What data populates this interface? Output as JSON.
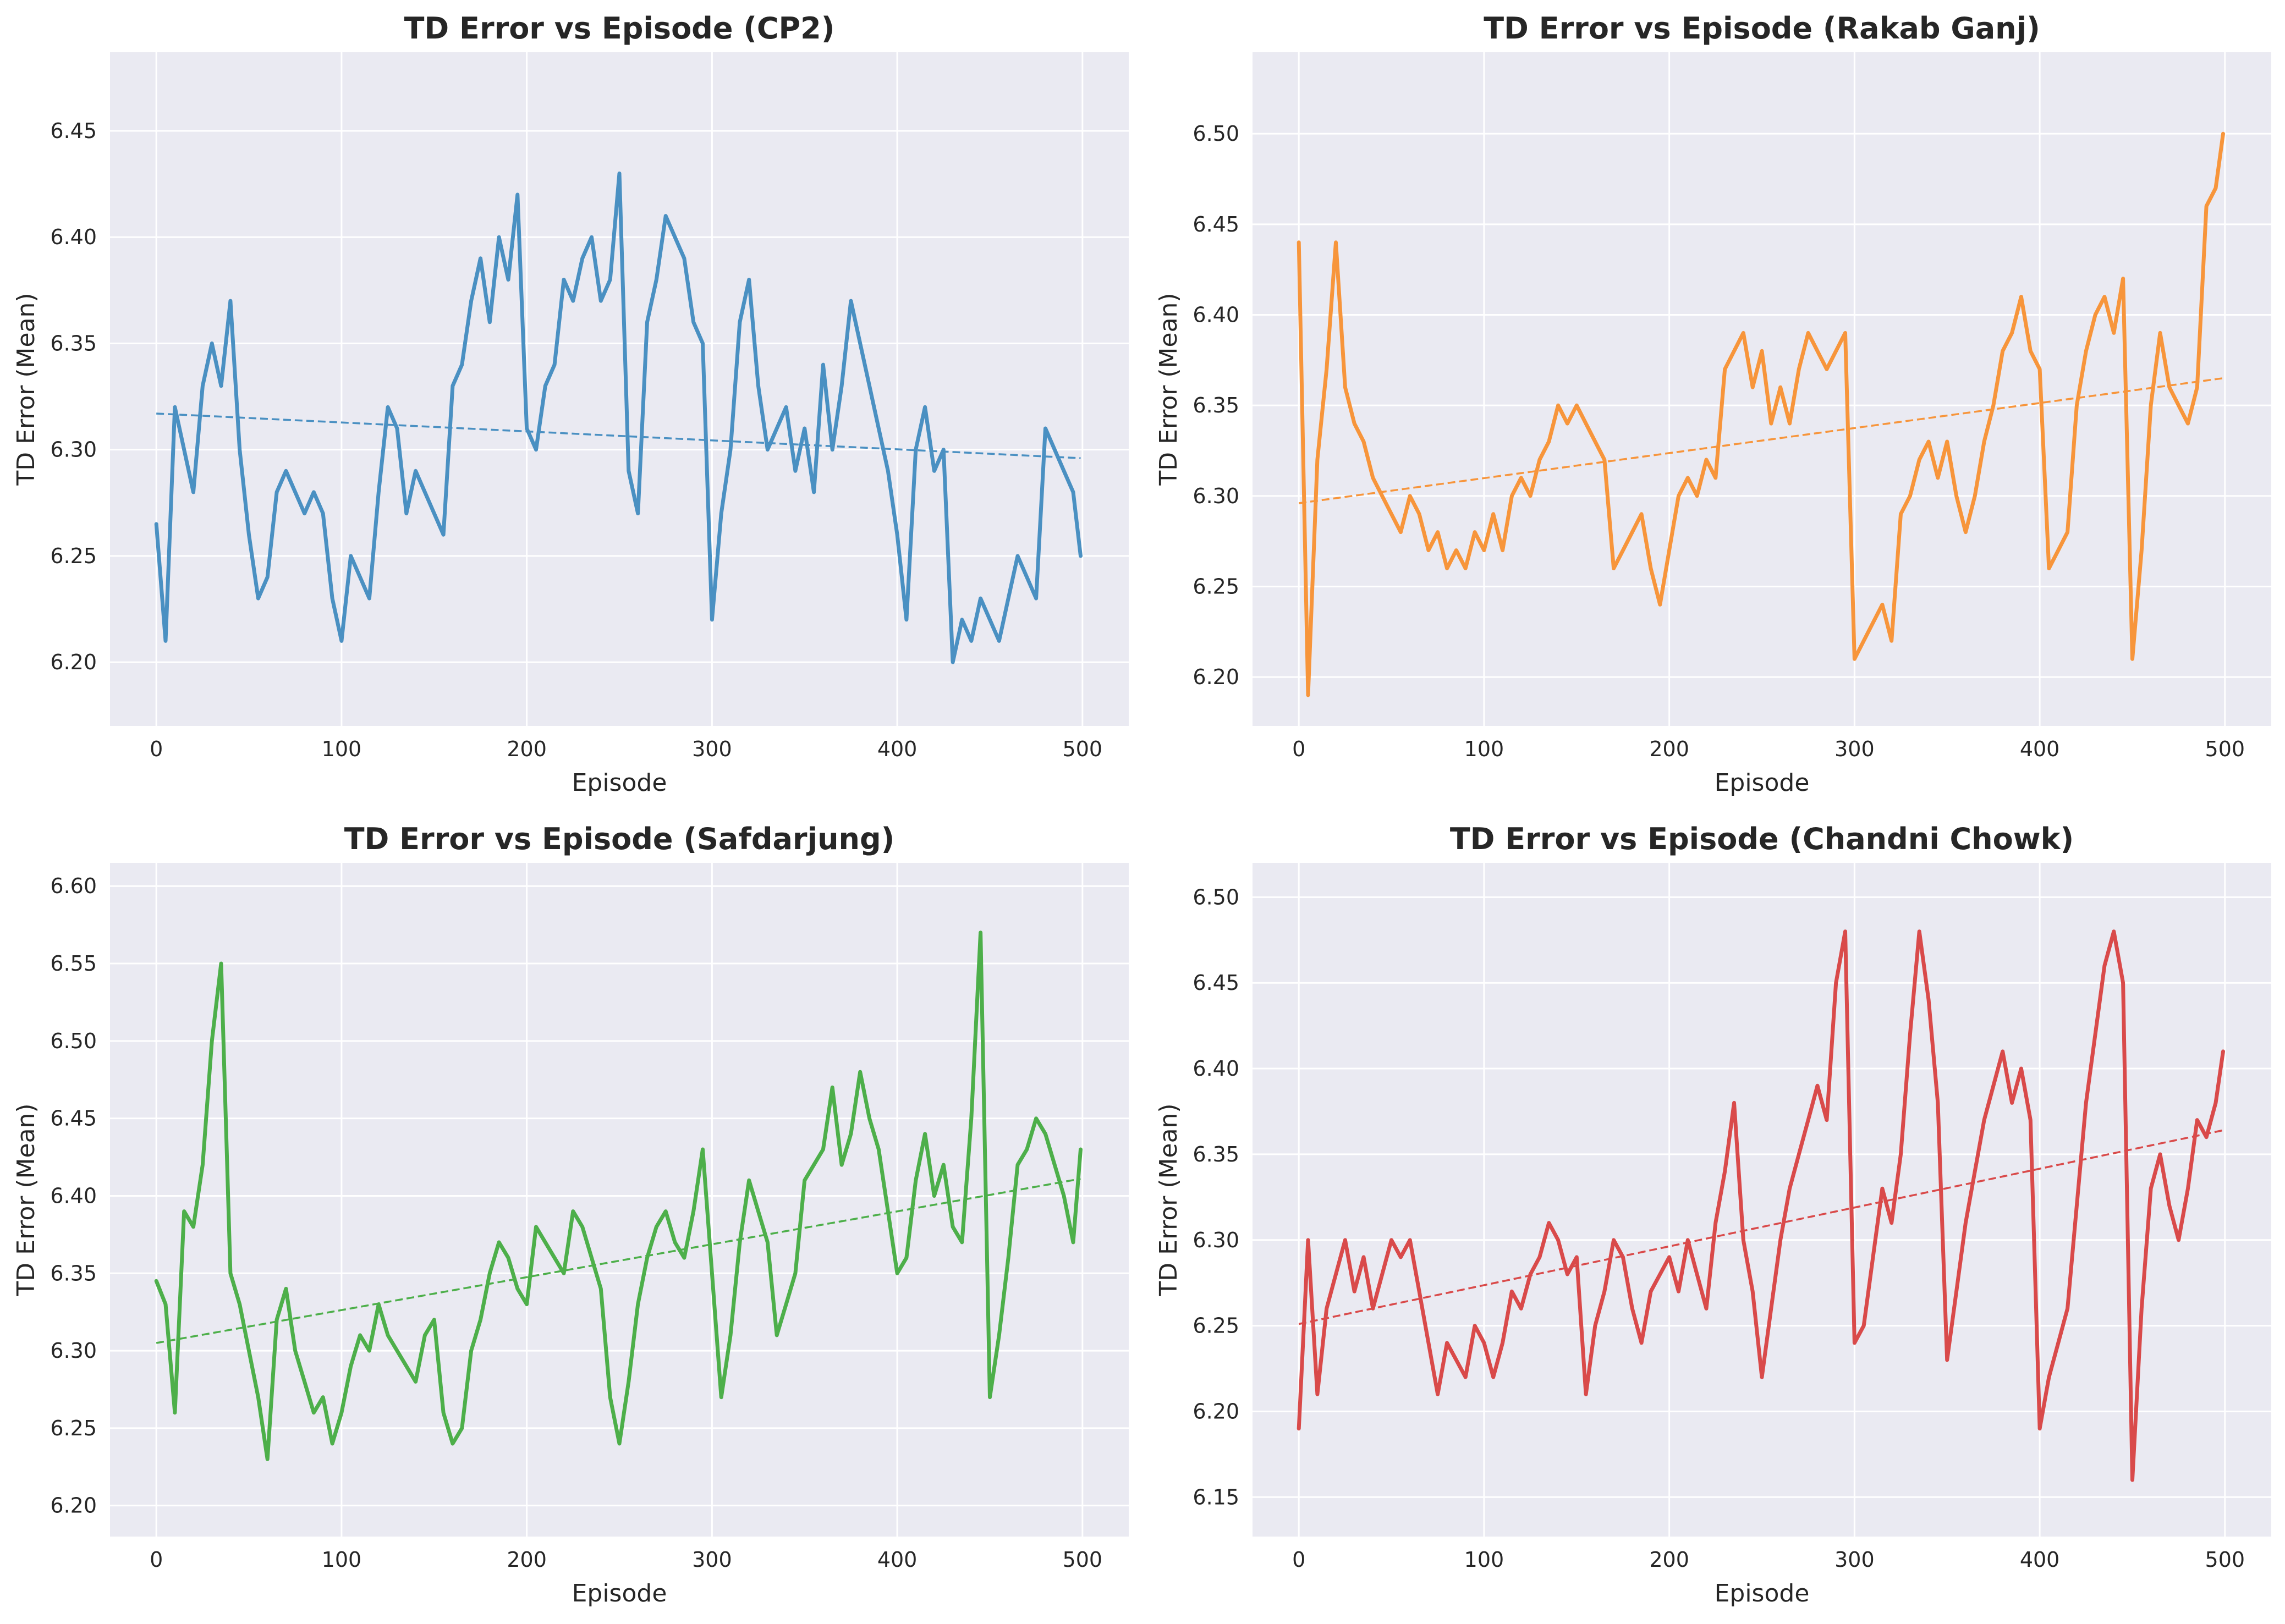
{
  "figure": {
    "background": "#ffffff"
  },
  "chart_data": [
    {
      "type": "line",
      "title": "TD Error vs Episode (CP2)",
      "xlabel": "Episode",
      "ylabel": "TD Error (Mean)",
      "xlim": [
        -25,
        525
      ],
      "ylim": [
        6.17,
        6.487
      ],
      "xticks": [
        0,
        100,
        200,
        300,
        400,
        500
      ],
      "yticks": [
        6.2,
        6.25,
        6.3,
        6.35,
        6.4,
        6.45
      ],
      "ytick_labels": [
        "6.20",
        "6.25",
        "6.30",
        "6.35",
        "6.40",
        "6.45"
      ],
      "grid": true,
      "color": "#4a90c2",
      "series": [
        {
          "x": [
            0,
            5,
            10,
            15,
            20,
            25,
            30,
            35,
            40,
            45,
            50,
            55,
            60,
            65,
            70,
            75,
            80,
            85,
            90,
            95,
            100,
            105,
            110,
            115,
            120,
            125,
            130,
            135,
            140,
            145,
            150,
            155,
            160,
            165,
            170,
            175,
            180,
            185,
            190,
            195,
            200,
            205,
            210,
            215,
            220,
            225,
            230,
            235,
            240,
            245,
            250,
            255,
            260,
            265,
            270,
            275,
            280,
            285,
            290,
            295,
            300,
            305,
            310,
            315,
            320,
            325,
            330,
            335,
            340,
            345,
            350,
            355,
            360,
            365,
            370,
            375,
            380,
            385,
            390,
            395,
            400,
            405,
            410,
            415,
            420,
            425,
            430,
            435,
            440,
            445,
            450,
            455,
            460,
            465,
            470,
            475,
            480,
            485,
            490,
            495,
            499
          ],
          "values": [
            6.265,
            6.21,
            6.32,
            6.3,
            6.28,
            6.33,
            6.35,
            6.33,
            6.37,
            6.3,
            6.26,
            6.23,
            6.24,
            6.28,
            6.29,
            6.28,
            6.27,
            6.28,
            6.27,
            6.23,
            6.21,
            6.25,
            6.24,
            6.23,
            6.28,
            6.32,
            6.31,
            6.27,
            6.29,
            6.28,
            6.27,
            6.26,
            6.33,
            6.34,
            6.37,
            6.39,
            6.36,
            6.4,
            6.38,
            6.42,
            6.31,
            6.3,
            6.33,
            6.34,
            6.38,
            6.37,
            6.39,
            6.4,
            6.37,
            6.38,
            6.43,
            6.29,
            6.27,
            6.36,
            6.38,
            6.41,
            6.4,
            6.39,
            6.36,
            6.35,
            6.22,
            6.27,
            6.3,
            6.36,
            6.38,
            6.33,
            6.3,
            6.31,
            6.32,
            6.29,
            6.31,
            6.28,
            6.34,
            6.3,
            6.33,
            6.37,
            6.35,
            6.33,
            6.31,
            6.29,
            6.26,
            6.22,
            6.3,
            6.32,
            6.29,
            6.3,
            6.2,
            6.22,
            6.21,
            6.23,
            6.22,
            6.21,
            6.23,
            6.25,
            6.24,
            6.23,
            6.31,
            6.3,
            6.29,
            6.28,
            6.25
          ]
        },
        {
          "name": "trend",
          "x": [
            0,
            499
          ],
          "values": [
            6.317,
            6.296
          ]
        }
      ]
    },
    {
      "type": "line",
      "title": "TD Error vs Episode (Rakab Ganj)",
      "xlabel": "Episode",
      "ylabel": "TD Error (Mean)",
      "xlim": [
        -25,
        525
      ],
      "ylim": [
        6.173,
        6.545
      ],
      "xticks": [
        0,
        100,
        200,
        300,
        400,
        500
      ],
      "yticks": [
        6.2,
        6.25,
        6.3,
        6.35,
        6.4,
        6.45,
        6.5
      ],
      "ytick_labels": [
        "6.20",
        "6.25",
        "6.30",
        "6.35",
        "6.40",
        "6.45",
        "6.50"
      ],
      "grid": true,
      "color": "#f7953b",
      "series": [
        {
          "x": [
            0,
            5,
            10,
            15,
            20,
            25,
            30,
            35,
            40,
            45,
            50,
            55,
            60,
            65,
            70,
            75,
            80,
            85,
            90,
            95,
            100,
            105,
            110,
            115,
            120,
            125,
            130,
            135,
            140,
            145,
            150,
            155,
            160,
            165,
            170,
            175,
            180,
            185,
            190,
            195,
            200,
            205,
            210,
            215,
            220,
            225,
            230,
            235,
            240,
            245,
            250,
            255,
            260,
            265,
            270,
            275,
            280,
            285,
            290,
            295,
            300,
            305,
            310,
            315,
            320,
            325,
            330,
            335,
            340,
            345,
            350,
            355,
            360,
            365,
            370,
            375,
            380,
            385,
            390,
            395,
            400,
            405,
            410,
            415,
            420,
            425,
            430,
            435,
            440,
            445,
            450,
            455,
            460,
            465,
            470,
            475,
            480,
            485,
            490,
            495,
            499
          ],
          "values": [
            6.44,
            6.19,
            6.32,
            6.37,
            6.44,
            6.36,
            6.34,
            6.33,
            6.31,
            6.3,
            6.29,
            6.28,
            6.3,
            6.29,
            6.27,
            6.28,
            6.26,
            6.27,
            6.26,
            6.28,
            6.27,
            6.29,
            6.27,
            6.3,
            6.31,
            6.3,
            6.32,
            6.33,
            6.35,
            6.34,
            6.35,
            6.34,
            6.33,
            6.32,
            6.26,
            6.27,
            6.28,
            6.29,
            6.26,
            6.24,
            6.27,
            6.3,
            6.31,
            6.3,
            6.32,
            6.31,
            6.37,
            6.38,
            6.39,
            6.36,
            6.38,
            6.34,
            6.36,
            6.34,
            6.37,
            6.39,
            6.38,
            6.37,
            6.38,
            6.39,
            6.21,
            6.22,
            6.23,
            6.24,
            6.22,
            6.29,
            6.3,
            6.32,
            6.33,
            6.31,
            6.33,
            6.3,
            6.28,
            6.3,
            6.33,
            6.35,
            6.38,
            6.39,
            6.41,
            6.38,
            6.37,
            6.26,
            6.27,
            6.28,
            6.35,
            6.38,
            6.4,
            6.41,
            6.39,
            6.42,
            6.21,
            6.27,
            6.35,
            6.39,
            6.36,
            6.35,
            6.34,
            6.36,
            6.46,
            6.47,
            6.5
          ]
        },
        {
          "name": "trend",
          "x": [
            0,
            499
          ],
          "values": [
            6.296,
            6.365
          ]
        }
      ]
    },
    {
      "type": "line",
      "title": "TD Error vs Episode (Safdarjung)",
      "xlabel": "Episode",
      "ylabel": "TD Error (Mean)",
      "xlim": [
        -25,
        525
      ],
      "ylim": [
        6.18,
        6.615
      ],
      "xticks": [
        0,
        100,
        200,
        300,
        400,
        500
      ],
      "yticks": [
        6.2,
        6.25,
        6.3,
        6.35,
        6.4,
        6.45,
        6.5,
        6.55,
        6.6
      ],
      "ytick_labels": [
        "6.20",
        "6.25",
        "6.30",
        "6.35",
        "6.40",
        "6.45",
        "6.50",
        "6.55",
        "6.60"
      ],
      "grid": true,
      "color": "#4daf4a",
      "series": [
        {
          "x": [
            0,
            5,
            10,
            15,
            20,
            25,
            30,
            35,
            40,
            45,
            50,
            55,
            60,
            65,
            70,
            75,
            80,
            85,
            90,
            95,
            100,
            105,
            110,
            115,
            120,
            125,
            130,
            135,
            140,
            145,
            150,
            155,
            160,
            165,
            170,
            175,
            180,
            185,
            190,
            195,
            200,
            205,
            210,
            215,
            220,
            225,
            230,
            235,
            240,
            245,
            250,
            255,
            260,
            265,
            270,
            275,
            280,
            285,
            290,
            295,
            300,
            305,
            310,
            315,
            320,
            325,
            330,
            335,
            340,
            345,
            350,
            355,
            360,
            365,
            370,
            375,
            380,
            385,
            390,
            395,
            400,
            405,
            410,
            415,
            420,
            425,
            430,
            435,
            440,
            445,
            450,
            455,
            460,
            465,
            470,
            475,
            480,
            485,
            490,
            495,
            499
          ],
          "values": [
            6.345,
            6.33,
            6.26,
            6.39,
            6.38,
            6.42,
            6.5,
            6.55,
            6.35,
            6.33,
            6.3,
            6.27,
            6.23,
            6.32,
            6.34,
            6.3,
            6.28,
            6.26,
            6.27,
            6.24,
            6.26,
            6.29,
            6.31,
            6.3,
            6.33,
            6.31,
            6.3,
            6.29,
            6.28,
            6.31,
            6.32,
            6.26,
            6.24,
            6.25,
            6.3,
            6.32,
            6.35,
            6.37,
            6.36,
            6.34,
            6.33,
            6.38,
            6.37,
            6.36,
            6.35,
            6.39,
            6.38,
            6.36,
            6.34,
            6.27,
            6.24,
            6.28,
            6.33,
            6.36,
            6.38,
            6.39,
            6.37,
            6.36,
            6.39,
            6.43,
            6.35,
            6.27,
            6.31,
            6.37,
            6.41,
            6.39,
            6.37,
            6.31,
            6.33,
            6.35,
            6.41,
            6.42,
            6.43,
            6.47,
            6.42,
            6.44,
            6.48,
            6.45,
            6.43,
            6.39,
            6.35,
            6.36,
            6.41,
            6.44,
            6.4,
            6.42,
            6.38,
            6.37,
            6.45,
            6.57,
            6.27,
            6.31,
            6.36,
            6.42,
            6.43,
            6.45,
            6.44,
            6.42,
            6.4,
            6.37,
            6.43
          ]
        },
        {
          "name": "trend",
          "x": [
            0,
            499
          ],
          "values": [
            6.305,
            6.411
          ]
        }
      ]
    },
    {
      "type": "line",
      "title": "TD Error vs Episode (Chandni Chowk)",
      "xlabel": "Episode",
      "ylabel": "TD Error (Mean)",
      "xlim": [
        -25,
        525
      ],
      "ylim": [
        6.127,
        6.52
      ],
      "xticks": [
        0,
        100,
        200,
        300,
        400,
        500
      ],
      "yticks": [
        6.15,
        6.2,
        6.25,
        6.3,
        6.35,
        6.4,
        6.45,
        6.5
      ],
      "ytick_labels": [
        "6.15",
        "6.20",
        "6.25",
        "6.30",
        "6.35",
        "6.40",
        "6.45",
        "6.50"
      ],
      "grid": true,
      "color": "#d94a4a",
      "series": [
        {
          "x": [
            0,
            5,
            10,
            15,
            20,
            25,
            30,
            35,
            40,
            45,
            50,
            55,
            60,
            65,
            70,
            75,
            80,
            85,
            90,
            95,
            100,
            105,
            110,
            115,
            120,
            125,
            130,
            135,
            140,
            145,
            150,
            155,
            160,
            165,
            170,
            175,
            180,
            185,
            190,
            195,
            200,
            205,
            210,
            215,
            220,
            225,
            230,
            235,
            240,
            245,
            250,
            255,
            260,
            265,
            270,
            275,
            280,
            285,
            290,
            295,
            300,
            305,
            310,
            315,
            320,
            325,
            330,
            335,
            340,
            345,
            350,
            355,
            360,
            365,
            370,
            375,
            380,
            385,
            390,
            395,
            400,
            405,
            410,
            415,
            420,
            425,
            430,
            435,
            440,
            445,
            450,
            455,
            460,
            465,
            470,
            475,
            480,
            485,
            490,
            495,
            499
          ],
          "values": [
            6.19,
            6.3,
            6.21,
            6.26,
            6.28,
            6.3,
            6.27,
            6.29,
            6.26,
            6.28,
            6.3,
            6.29,
            6.3,
            6.27,
            6.24,
            6.21,
            6.24,
            6.23,
            6.22,
            6.25,
            6.24,
            6.22,
            6.24,
            6.27,
            6.26,
            6.28,
            6.29,
            6.31,
            6.3,
            6.28,
            6.29,
            6.21,
            6.25,
            6.27,
            6.3,
            6.29,
            6.26,
            6.24,
            6.27,
            6.28,
            6.29,
            6.27,
            6.3,
            6.28,
            6.26,
            6.31,
            6.34,
            6.38,
            6.3,
            6.27,
            6.22,
            6.26,
            6.3,
            6.33,
            6.35,
            6.37,
            6.39,
            6.37,
            6.45,
            6.48,
            6.24,
            6.25,
            6.29,
            6.33,
            6.31,
            6.35,
            6.42,
            6.48,
            6.44,
            6.38,
            6.23,
            6.27,
            6.31,
            6.34,
            6.37,
            6.39,
            6.41,
            6.38,
            6.4,
            6.37,
            6.19,
            6.22,
            6.24,
            6.26,
            6.32,
            6.38,
            6.42,
            6.46,
            6.48,
            6.45,
            6.16,
            6.26,
            6.33,
            6.35,
            6.32,
            6.3,
            6.33,
            6.37,
            6.36,
            6.38,
            6.41
          ]
        },
        {
          "name": "trend",
          "x": [
            0,
            499
          ],
          "values": [
            6.251,
            6.364
          ]
        }
      ]
    }
  ]
}
